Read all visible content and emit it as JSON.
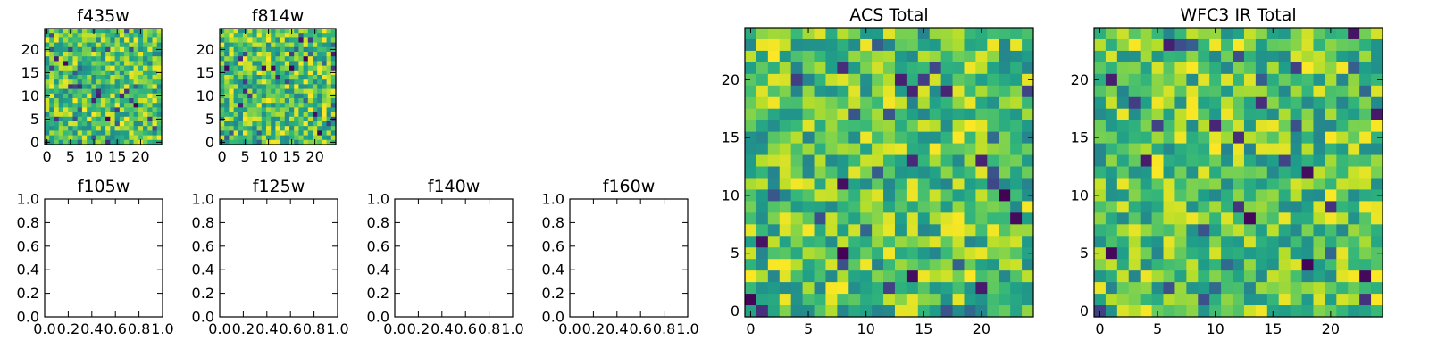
{
  "figure": {
    "colors": {
      "viridis_low": "#440154",
      "viridis_mid": "#21918c",
      "viridis_high": "#fde725",
      "frame": "#000000"
    }
  },
  "chart_data": [
    {
      "id": "f435w",
      "type": "heatmap",
      "title": "f435w",
      "grid": [
        25,
        25
      ],
      "seed": 1,
      "xlim": [
        0,
        24
      ],
      "ylim": [
        0,
        24
      ],
      "xticks": [
        0,
        5,
        10,
        15,
        20
      ],
      "yticks": [
        0,
        5,
        10,
        15,
        20
      ],
      "colormap": "viridis"
    },
    {
      "id": "f814w",
      "type": "heatmap",
      "title": "f814w",
      "grid": [
        25,
        25
      ],
      "seed": 2,
      "xlim": [
        0,
        24
      ],
      "ylim": [
        0,
        24
      ],
      "xticks": [
        0,
        5,
        10,
        15,
        20
      ],
      "yticks": [
        0,
        5,
        10,
        15,
        20
      ],
      "colormap": "viridis"
    },
    {
      "id": "f105w",
      "type": "heatmap",
      "title": "f105w",
      "empty": true,
      "xlim": [
        0,
        1
      ],
      "ylim": [
        0,
        1
      ],
      "xticks": [
        "0.0",
        "0.2",
        "0.4",
        "0.6",
        "0.8",
        "1.0"
      ],
      "yticks": [
        "0.0",
        "0.2",
        "0.4",
        "0.6",
        "0.8",
        "1.0"
      ]
    },
    {
      "id": "f125w",
      "type": "heatmap",
      "title": "f125w",
      "empty": true,
      "xlim": [
        0,
        1
      ],
      "ylim": [
        0,
        1
      ],
      "xticks": [
        "0.0",
        "0.2",
        "0.4",
        "0.6",
        "0.8",
        "1.0"
      ],
      "yticks": [
        "0.0",
        "0.2",
        "0.4",
        "0.6",
        "0.8",
        "1.0"
      ]
    },
    {
      "id": "f140w",
      "type": "heatmap",
      "title": "f140w",
      "empty": true,
      "xlim": [
        0,
        1
      ],
      "ylim": [
        0,
        1
      ],
      "xticks": [
        "0.0",
        "0.2",
        "0.4",
        "0.6",
        "0.8",
        "1.0"
      ],
      "yticks": [
        "0.0",
        "0.2",
        "0.4",
        "0.6",
        "0.8",
        "1.0"
      ]
    },
    {
      "id": "f160w",
      "type": "heatmap",
      "title": "f160w",
      "empty": true,
      "xlim": [
        0,
        1
      ],
      "ylim": [
        0,
        1
      ],
      "xticks": [
        "0.0",
        "0.2",
        "0.4",
        "0.6",
        "0.8",
        "1.0"
      ],
      "yticks": [
        "0.0",
        "0.2",
        "0.4",
        "0.6",
        "0.8",
        "1.0"
      ]
    },
    {
      "id": "acs-total",
      "type": "heatmap",
      "title": "ACS Total",
      "grid": [
        25,
        25
      ],
      "seed": 3,
      "xlim": [
        0,
        24
      ],
      "ylim": [
        0,
        24
      ],
      "xticks": [
        0,
        5,
        10,
        15,
        20
      ],
      "yticks": [
        0,
        5,
        10,
        15,
        20
      ],
      "colormap": "viridis"
    },
    {
      "id": "wfc3-ir-total",
      "type": "heatmap",
      "title": "WFC3 IR Total",
      "grid": [
        25,
        25
      ],
      "seed": 4,
      "xlim": [
        0,
        24
      ],
      "ylim": [
        0,
        24
      ],
      "xticks": [
        0,
        5,
        10,
        15,
        20
      ],
      "yticks": [
        0,
        5,
        10,
        15,
        20
      ],
      "colormap": "viridis"
    }
  ]
}
